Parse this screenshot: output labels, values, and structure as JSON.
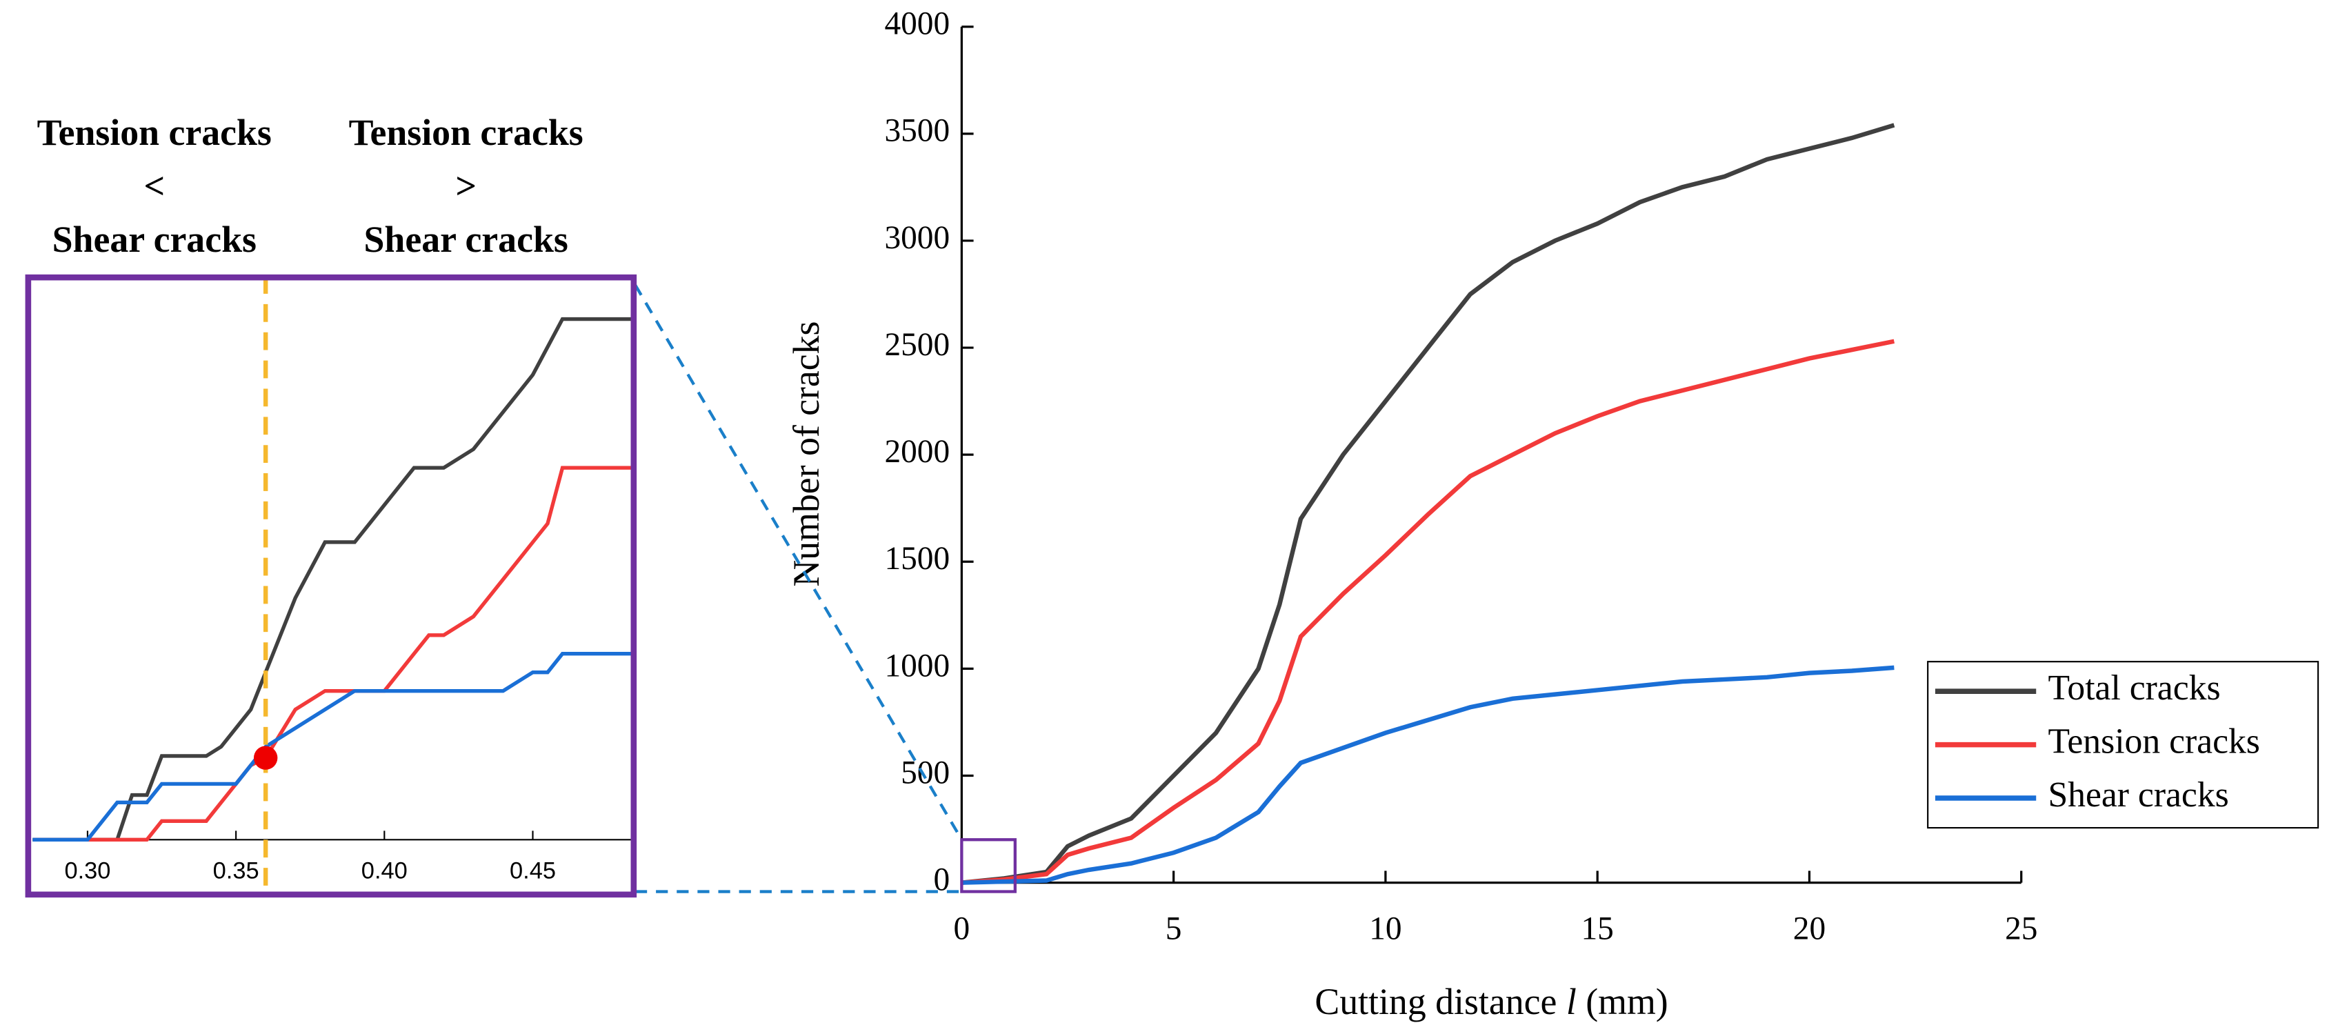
{
  "chart_data": [
    {
      "type": "line",
      "x_label": [
        "Cutting distance ",
        "l",
        " (mm)"
      ],
      "y_label": "Number of cracks",
      "x": [
        0,
        1,
        2,
        2.5,
        3,
        4,
        5,
        6,
        7,
        7.5,
        8,
        9,
        10,
        11,
        12,
        13,
        14,
        15,
        16,
        17,
        18,
        19,
        20,
        21,
        22
      ],
      "series": [
        {
          "name": "Total cracks",
          "color": "#404040",
          "values": [
            0,
            20,
            50,
            170,
            220,
            300,
            500,
            700,
            1000,
            1300,
            1700,
            2000,
            2250,
            2500,
            2750,
            2900,
            3000,
            3080,
            3180,
            3250,
            3300,
            3380,
            3430,
            3480,
            3540
          ]
        },
        {
          "name": "Tension cracks",
          "color": "#f23a3a",
          "values": [
            0,
            15,
            40,
            130,
            160,
            210,
            350,
            480,
            650,
            850,
            1150,
            1350,
            1530,
            1720,
            1900,
            2000,
            2100,
            2180,
            2250,
            2300,
            2350,
            2400,
            2450,
            2490,
            2530
          ]
        },
        {
          "name": "Shear cracks",
          "color": "#1a6fd6",
          "values": [
            0,
            5,
            10,
            40,
            60,
            90,
            140,
            210,
            330,
            450,
            560,
            630,
            700,
            760,
            820,
            860,
            880,
            900,
            920,
            940,
            950,
            960,
            980,
            990,
            1005
          ]
        }
      ],
      "xlim": [
        0,
        25
      ],
      "xticks": [
        0,
        5,
        10,
        15,
        20,
        25
      ],
      "ylim": [
        0,
        4000
      ],
      "yticks": [
        0,
        500,
        1000,
        1500,
        2000,
        2500,
        3000,
        3500,
        4000
      ],
      "legend": "right"
    },
    {
      "type": "line",
      "annotations": [
        [
          "Tension cracks",
          "<",
          "Shear cracks"
        ],
        [
          "Tension cracks",
          ">",
          "Shear cracks"
        ]
      ],
      "x": [
        0.2815,
        0.3,
        0.31,
        0.315,
        0.32,
        0.325,
        0.335,
        0.34,
        0.345,
        0.35,
        0.355,
        0.36,
        0.37,
        0.38,
        0.39,
        0.395,
        0.4,
        0.41,
        0.415,
        0.42,
        0.43,
        0.44,
        0.45,
        0.455,
        0.46,
        0.483
      ],
      "series": [
        {
          "name": "Total cracks",
          "color": "#404040",
          "values": [
            0,
            0,
            0,
            2.4,
            2.4,
            4.5,
            4.5,
            4.5,
            5,
            6,
            7,
            9,
            13,
            16,
            16,
            17,
            18,
            20,
            20,
            20,
            21,
            23,
            25,
            26.5,
            28,
            28
          ]
        },
        {
          "name": "Tension cracks",
          "color": "#f23a3a",
          "values": [
            0,
            0,
            0,
            0,
            0,
            1,
            1,
            1,
            2,
            3,
            4,
            4.4,
            7,
            8,
            8,
            8,
            8,
            10,
            11,
            11,
            12,
            14,
            16,
            17,
            20,
            20
          ]
        },
        {
          "name": "Shear cracks",
          "color": "#1a6fd6",
          "values": [
            0,
            0,
            2,
            2,
            2,
            3,
            3,
            3,
            3,
            3,
            4,
            5,
            6,
            7,
            8,
            8,
            8,
            8,
            8,
            8,
            8,
            8,
            9,
            9,
            10,
            10
          ]
        }
      ],
      "marker": {
        "x": 0.36,
        "y": 4.4,
        "color": "#ee0000"
      },
      "divider": {
        "x": 0.36,
        "color": "#f5b82e"
      },
      "frame_color": "#7030a0",
      "xlim": [
        0.2815,
        0.483
      ],
      "xticks": [
        {
          "value": 0.3,
          "label": "0.30"
        },
        0.35,
        {
          "value": 0.4,
          "label": "0.40"
        },
        0.45
      ],
      "ylim": [
        0,
        30
      ]
    }
  ]
}
